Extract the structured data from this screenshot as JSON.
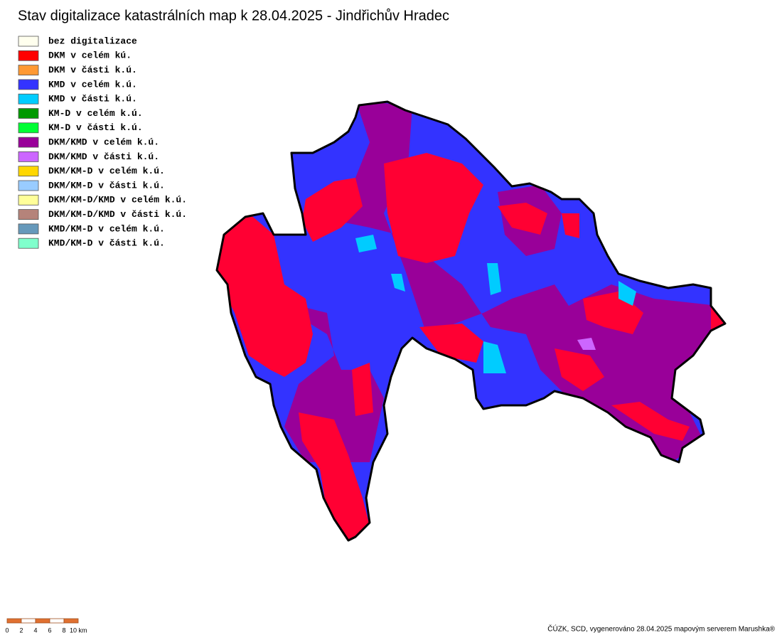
{
  "title": "Stav digitalizace katastrálních map k 28.04.2025 - Jindřichův Hradec",
  "legend": [
    {
      "label": "bez digitalizace",
      "color": "#ffffee"
    },
    {
      "label": "DKM v celém kú.",
      "color": "#ff0000"
    },
    {
      "label": "DKM v části k.ú.",
      "color": "#ff9933"
    },
    {
      "label": "KMD v celém k.ú.",
      "color": "#3333ff"
    },
    {
      "label": "KMD v části k.ú.",
      "color": "#00ccff"
    },
    {
      "label": "KM-D v celém k.ú.",
      "color": "#009900"
    },
    {
      "label": "KM-D v části k.ú.",
      "color": "#00ff33"
    },
    {
      "label": "DKM/KMD v celém k.ú.",
      "color": "#990099"
    },
    {
      "label": "DKM/KMD v části k.ú.",
      "color": "#cc66ff"
    },
    {
      "label": "DKM/KM-D v celém k.ú.",
      "color": "#ffd700"
    },
    {
      "label": "DKM/KM-D v části k.ú.",
      "color": "#99ccff"
    },
    {
      "label": "DKM/KM-D/KMD v celém k.ú.",
      "color": "#ffff99"
    },
    {
      "label": "DKM/KM-D/KMD v části k.ú.",
      "color": "#b5837a"
    },
    {
      "label": "KMD/KM-D v celém k.ú.",
      "color": "#6699bb"
    },
    {
      "label": "KMD/KM-D v části k.ú.",
      "color": "#80ffcc"
    }
  ],
  "scale": {
    "labels": [
      "0",
      "2",
      "4",
      "6",
      "8",
      "10 km"
    ]
  },
  "footer": "ČÚZK, SCD, vygenerováno 28.04.2025 mapovým serverem Marushka®"
}
